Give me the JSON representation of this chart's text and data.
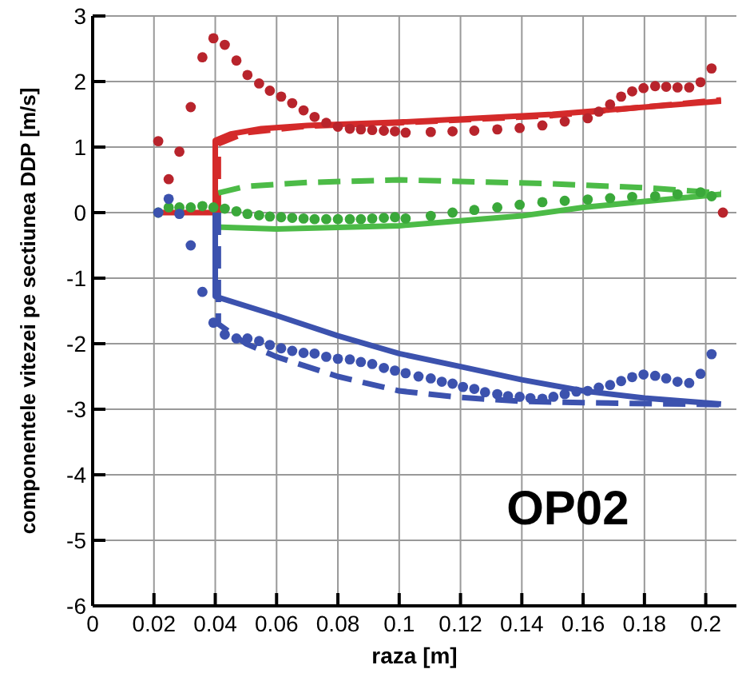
{
  "chart_data": {
    "type": "line",
    "xlabel": "raza [m]",
    "ylabel": "componentele vitezei pe sectiunea DDP [m/s]",
    "annotations": [
      "OP02"
    ],
    "xlim": [
      0,
      0.21
    ],
    "ylim": [
      -6,
      3
    ],
    "xticks": [
      0,
      0.02,
      0.04,
      0.06,
      0.08,
      0.1,
      0.12,
      0.14,
      0.16,
      0.18,
      0.2
    ],
    "yticks": [
      -6,
      -5,
      -4,
      -3,
      -2,
      -1,
      0,
      1,
      2,
      3
    ],
    "grid": true,
    "series": [
      {
        "line_style": "solid",
        "color": "#d42a2a",
        "x": [
          0.02,
          0.04,
          0.04,
          0.045,
          0.055,
          0.07,
          0.1,
          0.15,
          0.205
        ],
        "values": [
          0,
          0,
          1.1,
          1.2,
          1.28,
          1.33,
          1.38,
          1.5,
          1.7
        ]
      },
      {
        "line_style": "dashed",
        "color": "#d42a2a",
        "x": [
          0.041,
          0.041,
          0.05,
          0.07,
          0.1,
          0.15,
          0.205
        ],
        "values": [
          0,
          1.05,
          1.22,
          1.32,
          1.37,
          1.48,
          1.72
        ]
      },
      {
        "type": "scatter",
        "marker": "circle",
        "color": "#b8242c",
        "x": [
          0.0214,
          0.0248,
          0.0283,
          0.032,
          0.0358,
          0.0394,
          0.0431,
          0.0469,
          0.0505,
          0.0543,
          0.0578,
          0.0615,
          0.0651,
          0.0688,
          0.0724,
          0.0762,
          0.08,
          0.0839,
          0.0875,
          0.0912,
          0.095,
          0.0986,
          0.1021,
          0.1103,
          0.1174,
          0.1245,
          0.132,
          0.1393,
          0.1467,
          0.154,
          0.1615,
          0.1651,
          0.1688,
          0.1724,
          0.176,
          0.1797,
          0.1835,
          0.1871,
          0.1908,
          0.1946,
          0.1983,
          0.2019,
          0.2056
        ],
        "values": [
          1.09,
          0.51,
          0.93,
          1.61,
          2.37,
          2.66,
          2.56,
          2.32,
          2.1,
          1.97,
          1.86,
          1.77,
          1.67,
          1.56,
          1.46,
          1.37,
          1.31,
          1.28,
          1.27,
          1.26,
          1.25,
          1.24,
          1.22,
          1.23,
          1.24,
          1.25,
          1.27,
          1.29,
          1.33,
          1.39,
          1.44,
          1.54,
          1.65,
          1.77,
          1.85,
          1.9,
          1.93,
          1.92,
          1.91,
          1.91,
          1.99,
          2.2,
          0
        ]
      },
      {
        "line_style": "solid",
        "color": "#4cbb47",
        "x": [
          0.04,
          0.04,
          0.06,
          0.1,
          0.14,
          0.16,
          0.18,
          0.205
        ],
        "values": [
          0,
          -0.22,
          -0.25,
          -0.2,
          -0.05,
          0.08,
          0.17,
          0.28
        ]
      },
      {
        "line_style": "dashed",
        "color": "#4cbb47",
        "x": [
          0.041,
          0.05,
          0.07,
          0.1,
          0.15,
          0.18,
          0.205
        ],
        "values": [
          0.3,
          0.4,
          0.46,
          0.5,
          0.44,
          0.38,
          0.3
        ]
      },
      {
        "type": "scatter",
        "marker": "circle",
        "color": "#3aa83a",
        "x": [
          0.0214,
          0.0248,
          0.0283,
          0.032,
          0.0358,
          0.0394,
          0.0431,
          0.0469,
          0.0505,
          0.0543,
          0.0578,
          0.0615,
          0.0651,
          0.0688,
          0.0724,
          0.0762,
          0.08,
          0.0839,
          0.0875,
          0.0912,
          0.095,
          0.0986,
          0.1021,
          0.1103,
          0.1174,
          0.1245,
          0.132,
          0.1393,
          0.1467,
          0.154,
          0.1615,
          0.1688,
          0.176,
          0.1835,
          0.1908,
          0.1983,
          0.2019
        ],
        "values": [
          0,
          0.08,
          0.08,
          0.08,
          0.1,
          0.08,
          0.06,
          0.02,
          -0.02,
          -0.04,
          -0.06,
          -0.07,
          -0.08,
          -0.09,
          -0.1,
          -0.1,
          -0.1,
          -0.1,
          -0.1,
          -0.09,
          -0.08,
          -0.07,
          -0.09,
          -0.05,
          0,
          0.04,
          0.08,
          0.12,
          0.16,
          0.18,
          0.2,
          0.22,
          0.24,
          0.25,
          0.28,
          0.31,
          0.25
        ]
      },
      {
        "line_style": "solid",
        "color": "#3c52ae",
        "x": [
          0.04,
          0.04,
          0.06,
          0.08,
          0.1,
          0.12,
          0.14,
          0.16,
          0.18,
          0.205
        ],
        "values": [
          0,
          -1.28,
          -1.57,
          -1.88,
          -2.15,
          -2.35,
          -2.55,
          -2.72,
          -2.83,
          -2.92
        ]
      },
      {
        "line_style": "dashed",
        "color": "#3c52ae",
        "x": [
          0.041,
          0.041,
          0.05,
          0.06,
          0.08,
          0.1,
          0.12,
          0.14,
          0.16,
          0.205
        ],
        "values": [
          0,
          -1.7,
          -2.0,
          -2.2,
          -2.5,
          -2.72,
          -2.82,
          -2.88,
          -2.9,
          -2.93
        ]
      },
      {
        "type": "scatter",
        "marker": "circle",
        "color": "#3c52ae",
        "x": [
          0.0214,
          0.0248,
          0.0283,
          0.032,
          0.0358,
          0.0394,
          0.0431,
          0.0469,
          0.0505,
          0.0543,
          0.0578,
          0.0615,
          0.0651,
          0.0688,
          0.0724,
          0.0762,
          0.08,
          0.0839,
          0.0875,
          0.0912,
          0.095,
          0.0986,
          0.1021,
          0.1063,
          0.1103,
          0.1139,
          0.1174,
          0.1208,
          0.1245,
          0.128,
          0.132,
          0.1355,
          0.1393,
          0.1428,
          0.1467,
          0.1503,
          0.154,
          0.1578,
          0.1615,
          0.1651,
          0.1688,
          0.1724,
          0.176,
          0.1797,
          0.1835,
          0.1871,
          0.1908,
          0.1946,
          0.1983,
          0.2019
        ],
        "values": [
          0,
          0.21,
          -0.02,
          -0.5,
          -1.21,
          -1.68,
          -1.86,
          -1.92,
          -1.92,
          -1.96,
          -2.02,
          -2.07,
          -2.11,
          -2.14,
          -2.15,
          -2.2,
          -2.23,
          -2.24,
          -2.28,
          -2.31,
          -2.37,
          -2.41,
          -2.45,
          -2.5,
          -2.53,
          -2.58,
          -2.61,
          -2.66,
          -2.69,
          -2.74,
          -2.77,
          -2.8,
          -2.81,
          -2.83,
          -2.84,
          -2.81,
          -2.77,
          -2.73,
          -2.72,
          -2.67,
          -2.63,
          -2.57,
          -2.51,
          -2.47,
          -2.49,
          -2.53,
          -2.58,
          -2.6,
          -2.46,
          -2.16
        ]
      }
    ]
  }
}
